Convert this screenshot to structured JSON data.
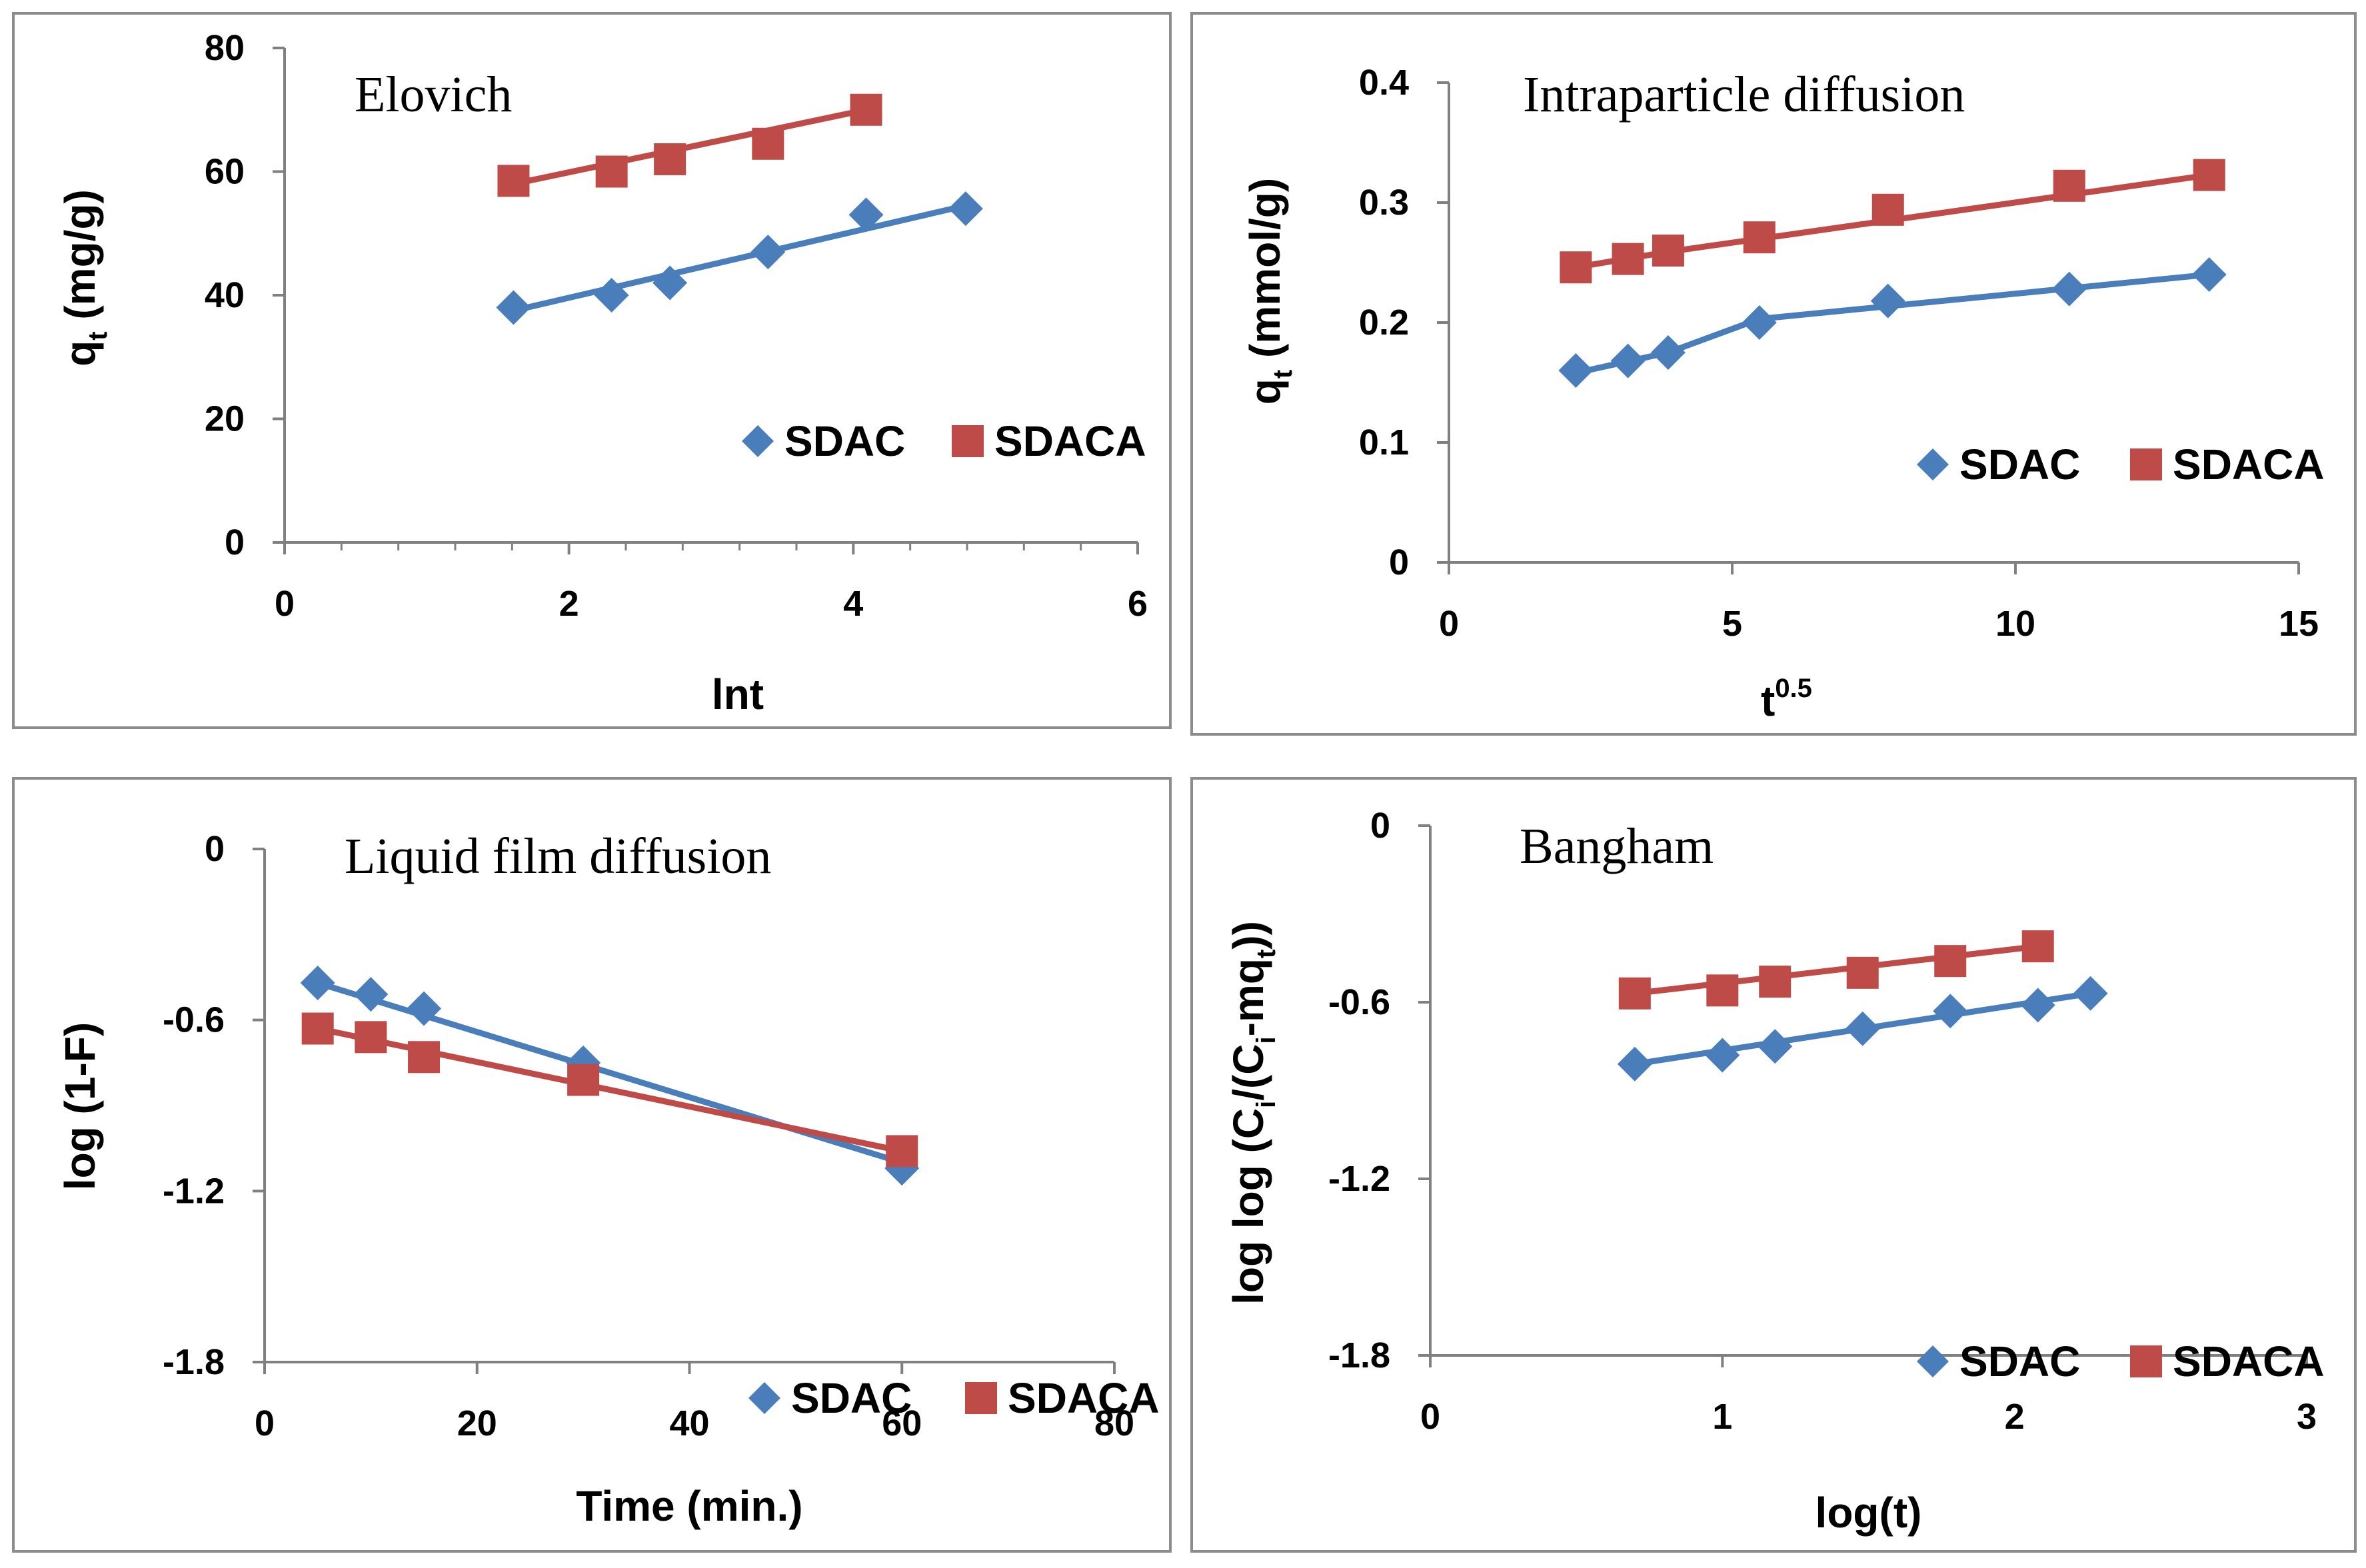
{
  "colors": {
    "sdac": "#4a7ebb",
    "sdaca": "#be4b48",
    "axis": "#808080"
  },
  "chart_data": [
    {
      "type": "line",
      "title": "Elovich",
      "xlabel": "lnt",
      "ylabel_main": "q",
      "ylabel_sub": "t",
      "ylabel_tail": " (mg/g)",
      "xlim": [
        0,
        6
      ],
      "ylim": [
        0,
        80
      ],
      "xticks": [
        0,
        2,
        4,
        6
      ],
      "yticks": [
        0,
        20,
        40,
        60,
        80
      ],
      "xtick_labels": [
        "0",
        "2",
        "4",
        "6"
      ],
      "ytick_labels": [
        "0",
        "20",
        "40",
        "60",
        "80"
      ],
      "series": [
        {
          "name": "SDAC",
          "marker": "diamond",
          "x": [
            1.61,
            2.3,
            2.71,
            3.4,
            4.09,
            4.79
          ],
          "y": [
            38,
            40,
            42,
            47,
            53,
            54
          ],
          "fit": [
            [
              1.61,
              37.5
            ],
            [
              4.79,
              54.5
            ]
          ]
        },
        {
          "name": "SDACA",
          "marker": "square",
          "x": [
            1.61,
            2.3,
            2.71,
            3.4,
            4.09
          ],
          "y": [
            58.5,
            60,
            62,
            64.5,
            70
          ],
          "fit": [
            [
              1.61,
              58
            ],
            [
              4.09,
              70
            ]
          ]
        }
      ],
      "legend": [
        "SDAC",
        "SDACA"
      ]
    },
    {
      "type": "line",
      "title": "Intraparticle diffusion",
      "xlabel": "t",
      "xlabel_sup": "0.5",
      "ylabel_main": "q",
      "ylabel_sub": "t",
      "ylabel_tail": " (mmol/g)",
      "xlim": [
        0,
        15
      ],
      "ylim": [
        0,
        0.4
      ],
      "xticks": [
        0,
        5,
        10,
        15
      ],
      "yticks": [
        0,
        0.1,
        0.2,
        0.3,
        0.4
      ],
      "xtick_labels": [
        "0",
        "5",
        "10",
        "15"
      ],
      "ytick_labels": [
        "0",
        "0.1",
        "0.2",
        "0.3",
        "0.4"
      ],
      "series": [
        {
          "name": "SDAC",
          "marker": "diamond",
          "x": [
            2.24,
            3.16,
            3.87,
            5.48,
            7.75,
            10.95,
            13.42
          ],
          "y": [
            0.16,
            0.168,
            0.175,
            0.2,
            0.218,
            0.228,
            0.24
          ],
          "fit": [
            [
              2.24,
              0.158
            ],
            [
              3.87,
              0.175
            ],
            [
              5.48,
              0.203
            ],
            [
              13.42,
              0.24
            ]
          ]
        },
        {
          "name": "SDACA",
          "marker": "square",
          "x": [
            2.24,
            3.16,
            3.87,
            5.48,
            7.75,
            10.95,
            13.42
          ],
          "y": [
            0.246,
            0.253,
            0.26,
            0.271,
            0.294,
            0.314,
            0.323
          ],
          "fit": [
            [
              2.24,
              0.246
            ],
            [
              3.87,
              0.259
            ],
            [
              13.42,
              0.323
            ]
          ]
        }
      ],
      "legend": [
        "SDAC",
        "SDACA"
      ]
    },
    {
      "type": "line",
      "title": "Liquid film diffusion",
      "xlabel": "Time (min.)",
      "ylabel_main": "log (1-F)",
      "ylabel_sub": "",
      "ylabel_tail": "",
      "xlim": [
        0,
        80
      ],
      "ylim": [
        -1.8,
        0
      ],
      "xticks": [
        0,
        20,
        40,
        60,
        80
      ],
      "yticks": [
        -1.8,
        -1.2,
        -0.6,
        0
      ],
      "xtick_labels": [
        "0",
        "20",
        "40",
        "60",
        "80"
      ],
      "ytick_labels": [
        "-1.8",
        "-1.2",
        "-0.6",
        "0"
      ],
      "series": [
        {
          "name": "SDAC",
          "marker": "diamond",
          "x": [
            5,
            10,
            15,
            30,
            60
          ],
          "y": [
            -0.47,
            -0.51,
            -0.56,
            -0.75,
            -1.12
          ],
          "fit": [
            [
              5,
              -0.47
            ],
            [
              60,
              -1.1
            ]
          ]
        },
        {
          "name": "SDACA",
          "marker": "square",
          "x": [
            5,
            10,
            15,
            30,
            60
          ],
          "y": [
            -0.63,
            -0.66,
            -0.73,
            -0.81,
            -1.06
          ],
          "fit": [
            [
              5,
              -0.63
            ],
            [
              60,
              -1.06
            ]
          ]
        }
      ],
      "legend": [
        "SDAC",
        "SDACA"
      ]
    },
    {
      "type": "line",
      "title": "Bangham",
      "xlabel": "log(t)",
      "ylabel_main": "log log (C",
      "ylabel_sub": "i",
      "ylabel_tail": "/(C",
      "ylabel_sub2": "i",
      "ylabel_tail2": "-mq",
      "ylabel_sub3": "t",
      "ylabel_tail3": "))",
      "xlim": [
        0,
        3
      ],
      "ylim": [
        -1.8,
        0
      ],
      "xticks": [
        0,
        1,
        2,
        3
      ],
      "yticks": [
        -1.8,
        -1.2,
        -0.6,
        0
      ],
      "xtick_labels": [
        "0",
        "1",
        "2",
        "3"
      ],
      "ytick_labels": [
        "-1.8",
        "-1.2",
        "-0.6",
        "0"
      ],
      "series": [
        {
          "name": "SDAC",
          "marker": "diamond",
          "x": [
            0.7,
            1.0,
            1.18,
            1.48,
            1.78,
            2.08,
            2.26
          ],
          "y": [
            -0.81,
            -0.78,
            -0.75,
            -0.69,
            -0.63,
            -0.61,
            -0.57
          ],
          "fit": [
            [
              0.7,
              -0.81
            ],
            [
              2.26,
              -0.57
            ]
          ]
        },
        {
          "name": "SDACA",
          "marker": "square",
          "x": [
            0.7,
            1.0,
            1.18,
            1.48,
            1.78,
            2.08
          ],
          "y": [
            -0.57,
            -0.56,
            -0.53,
            -0.5,
            -0.46,
            -0.41
          ],
          "fit": [
            [
              0.7,
              -0.57
            ],
            [
              2.08,
              -0.41
            ]
          ]
        }
      ],
      "legend": [
        "SDAC",
        "SDACA"
      ]
    }
  ]
}
